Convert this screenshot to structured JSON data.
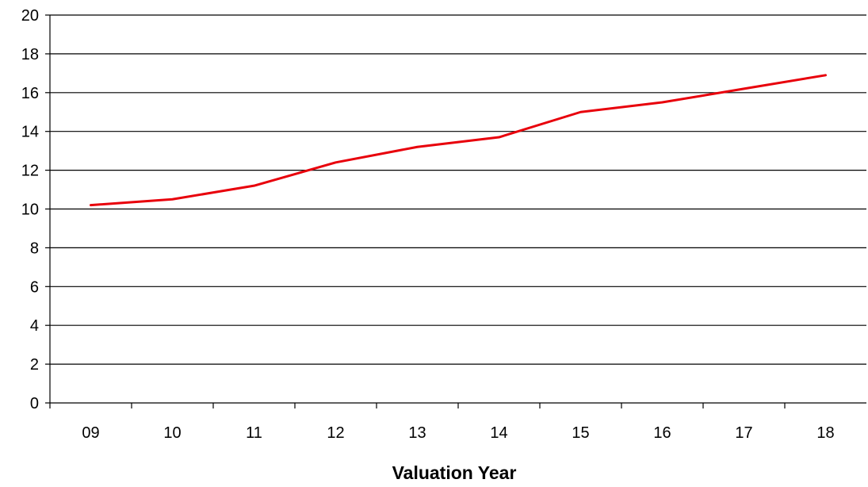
{
  "chart_data": {
    "type": "line",
    "title": "",
    "xlabel": "Valuation Year",
    "ylabel": "",
    "categories": [
      "09",
      "10",
      "11",
      "12",
      "13",
      "14",
      "15",
      "16",
      "17",
      "18"
    ],
    "series": [
      {
        "values": [
          10.2,
          10.5,
          11.2,
          12.4,
          13.2,
          13.7,
          15.0,
          15.5,
          16.2,
          16.9
        ]
      }
    ],
    "ylim": [
      0,
      20
    ],
    "yticks": [
      0,
      2,
      4,
      6,
      8,
      10,
      12,
      14,
      16,
      18,
      20
    ],
    "grid": true,
    "legend": "none",
    "colors": {
      "line": "#e8000b",
      "grid": "#000000",
      "axis": "#000000"
    }
  }
}
